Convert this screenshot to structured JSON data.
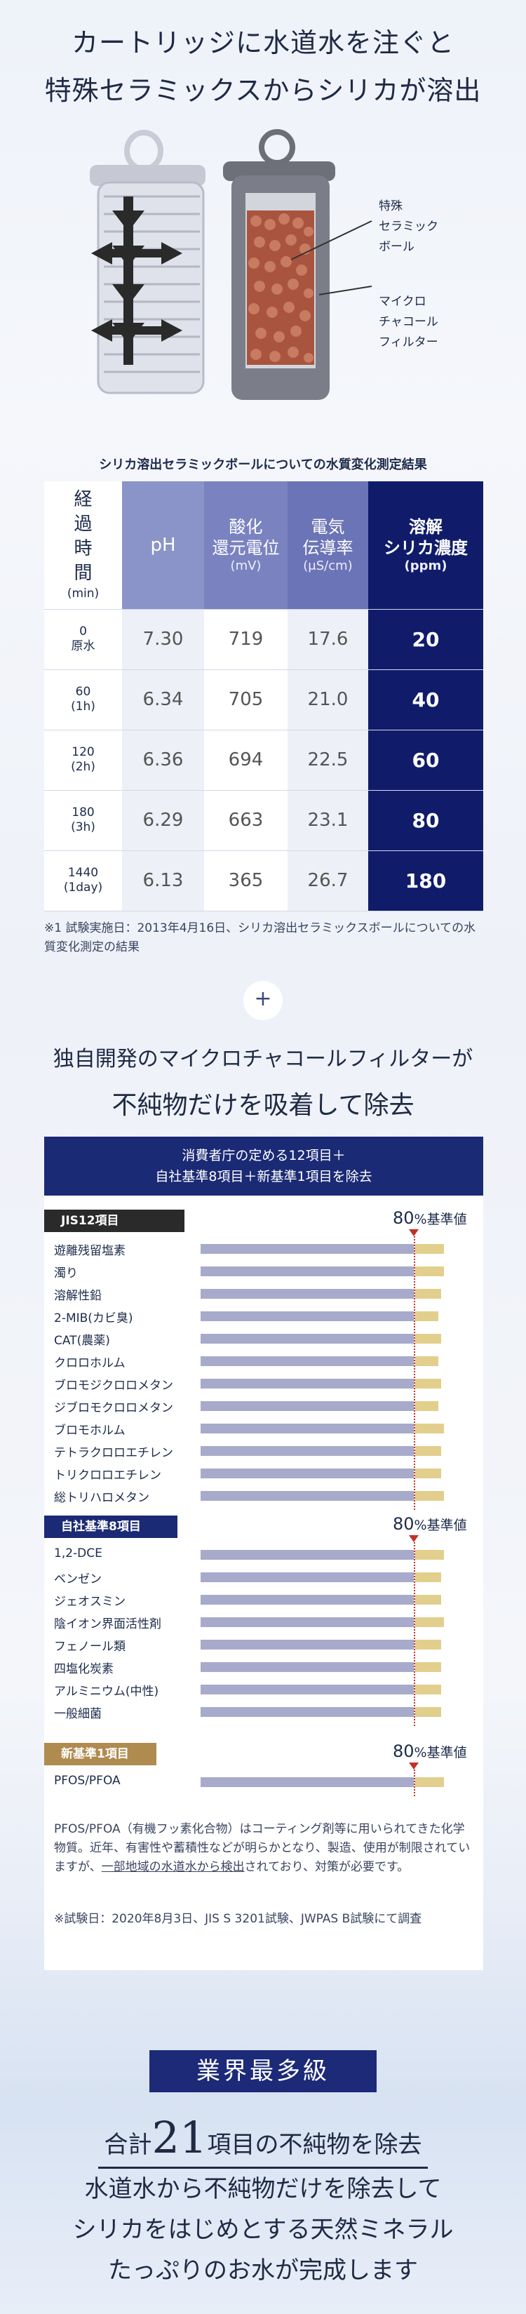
{
  "headline": {
    "line1": "カートリッジに水道水を注ぐと",
    "line2": "特殊セラミックスからシリカが溶出"
  },
  "illustration": {
    "label_ceramic": [
      "特殊",
      "セラミック",
      "ボール"
    ],
    "label_charcoal": [
      "マイクロ",
      "チャコール",
      "フィルター"
    ]
  },
  "table": {
    "caption": "シリカ溶出セラミックボールについての水質変化測定結果",
    "headers": [
      {
        "main": "経\n過\n時\n間",
        "unit": "(min)"
      },
      {
        "main": "pH",
        "unit": ""
      },
      {
        "main": "酸化\n還元電位",
        "unit": "(mV)"
      },
      {
        "main": "電気\n伝導率",
        "unit": "(μS/cm)"
      },
      {
        "main": "溶解\nシリカ濃度",
        "unit": "(ppm)"
      }
    ],
    "rows": [
      {
        "time": "0\n原水",
        "ph": "7.30",
        "orp": "719",
        "ec": "17.6",
        "silica": "20"
      },
      {
        "time": "60\n(1h)",
        "ph": "6.34",
        "orp": "705",
        "ec": "21.0",
        "silica": "40"
      },
      {
        "time": "120\n(2h)",
        "ph": "6.36",
        "orp": "694",
        "ec": "22.5",
        "silica": "60"
      },
      {
        "time": "180\n(3h)",
        "ph": "6.29",
        "orp": "663",
        "ec": "23.1",
        "silica": "80"
      },
      {
        "time": "1440\n(1day)",
        "ph": "6.13",
        "orp": "365",
        "ec": "26.7",
        "silica": "180"
      }
    ],
    "footnote": "※1 試験実施日：2013年4月16日、シリカ溶出セラミックスボールについての水質変化測定の結果"
  },
  "plus_symbol": "+",
  "section2": {
    "line1": "独自開発のマイクロチャコールフィルターが",
    "line2": "不純物だけを吸着して除去"
  },
  "panel": {
    "header_line1": "消費者庁の定める12項目＋",
    "header_line2": "自社基準8項目＋新基準1項目を除去",
    "standard_pct": "80",
    "standard_suffix": "%基準値",
    "groups": [
      {
        "tag": "JIS12項目",
        "items": [
          {
            "label": "遊離残留塩素",
            "gold": 0.85
          },
          {
            "label": "濁り",
            "gold": 0.85
          },
          {
            "label": "溶解性鉛",
            "gold": 0.84
          },
          {
            "label": "2-MIB(カビ臭)",
            "gold": 0.83
          },
          {
            "label": "CAT(農薬)",
            "gold": 0.84
          },
          {
            "label": "クロロホルム",
            "gold": 0.83
          },
          {
            "label": "ブロモジクロロメタン",
            "gold": 0.84
          },
          {
            "label": "ジブロモクロロメタン",
            "gold": 0.83
          },
          {
            "label": "ブロモホルム",
            "gold": 0.85
          },
          {
            "label": "テトラクロロエチレン",
            "gold": 0.84
          },
          {
            "label": "トリクロロエチレン",
            "gold": 0.84
          },
          {
            "label": "総トリハロメタン",
            "gold": 0.85
          }
        ]
      },
      {
        "tag": "自社基準8項目",
        "items": [
          {
            "label": "1,2-DCE",
            "gold": 0.85
          },
          {
            "label": "ベンゼン",
            "gold": 0.84
          },
          {
            "label": "ジェオスミン",
            "gold": 0.84
          },
          {
            "label": "陰イオン界面活性剤",
            "gold": 0.85
          },
          {
            "label": "フェノール類",
            "gold": 0.84
          },
          {
            "label": "四塩化炭素",
            "gold": 0.84
          },
          {
            "label": "アルミニウム(中性)",
            "gold": 0.84
          },
          {
            "label": "一般細菌",
            "gold": 0.84
          }
        ]
      },
      {
        "tag": "新基準1項目",
        "items": [
          {
            "label": "PFOS/PFOA",
            "gold": 0.85
          }
        ]
      }
    ],
    "note1_a": "PFOS/PFOA（有機フッ素化合物）はコーティング剤等に用いられてきた化学物質。近年、有害性や蓄積性などが明らかとなり、製造、使用が制限されていますが、",
    "note1_link": "一部地域の水道水から検出",
    "note1_b": "されており、対策が必要です。",
    "note2": "※試験日：2020年8月3日、JIS S 3201試験、JWPAS B試験にて調査"
  },
  "finale": {
    "badge": "業界最多級",
    "line1_prefix": "合計",
    "line1_number": "21",
    "line1_suffix": "項目の不純物を除去",
    "line2": "水道水から不純物だけを除去して",
    "line3": "シリカをはじめとする天然ミネラル",
    "line4": "たっぷりのお水が完成します"
  },
  "colors": {
    "navy": "#101c6a",
    "bar_blue": "#a8aacb",
    "bar_gold": "#e2cf8d",
    "standard_line": "#c2302a"
  }
}
